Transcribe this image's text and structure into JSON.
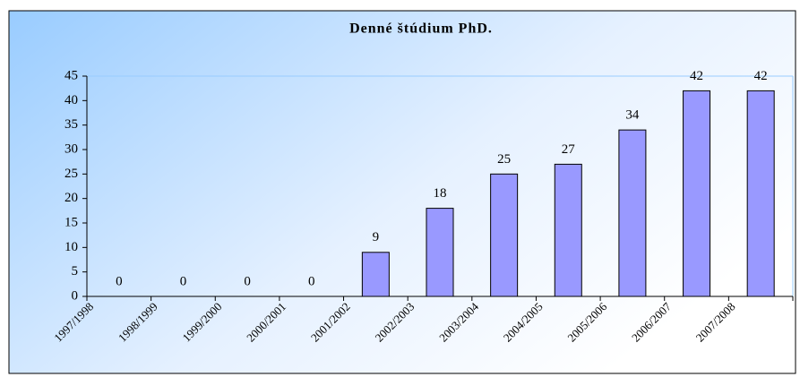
{
  "chart_data": {
    "type": "bar",
    "title": "Denné štúdium PhD.",
    "categories": [
      "1997/1998",
      "1998/1999",
      "1999/2000",
      "2000/2001",
      "2001/2002",
      "2002/2003",
      "2003/2004",
      "2004/2005",
      "2005/2006",
      "2006/2007",
      "2007/2008"
    ],
    "values": [
      0,
      0,
      0,
      0,
      9,
      18,
      25,
      27,
      34,
      42,
      42
    ],
    "color": "#9999ff",
    "ylim": [
      0,
      45
    ],
    "yticks": [
      0,
      5,
      10,
      15,
      20,
      25,
      30,
      35,
      40,
      45
    ],
    "grid": false
  }
}
